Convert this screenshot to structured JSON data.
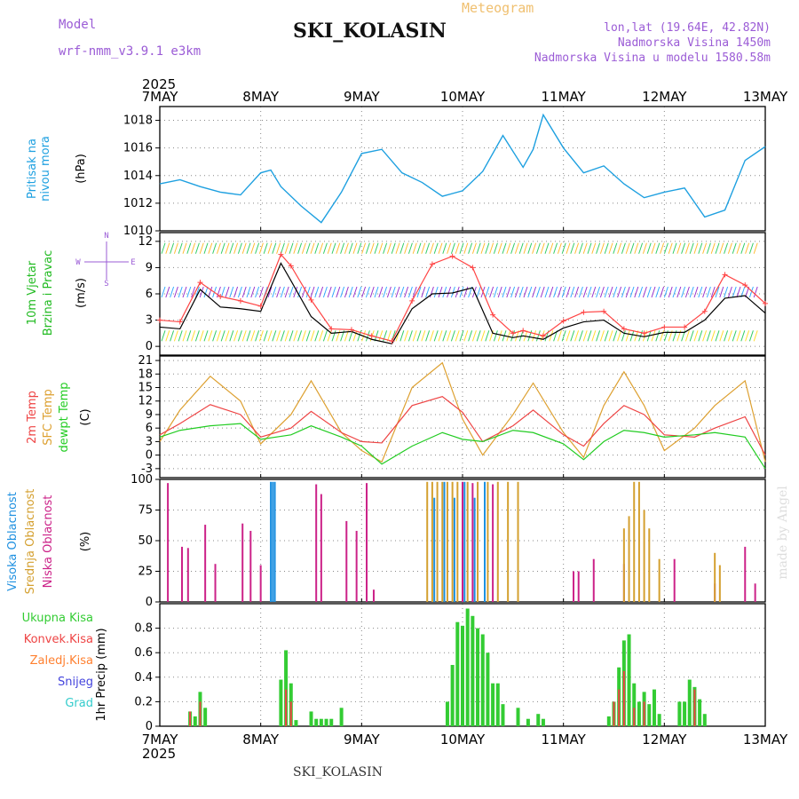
{
  "header": {
    "model_label": "Model",
    "model_name": "wrf-nmm_v3.9.1 e3km",
    "meteogram_label": "Meteogram",
    "station": "SKI_KOLASIN",
    "coords": "lon,lat (19.64E, 42.82N)",
    "altitude": "Nadmorska Visina 1450m",
    "model_altitude": "Nadmorska Visina u modelu 1580.58m"
  },
  "footer": {
    "station": "SKI_KOLASIN",
    "credit": "made by Angel"
  },
  "colors": {
    "pressure": "#1ea0e0",
    "wind_speed": "#000000",
    "wind_gust": "#ff4444",
    "temp2m": "#ee4444",
    "sfc_temp": "#dda030",
    "dewpt": "#22cc22",
    "cloud_high": "#1e90e0",
    "cloud_mid": "#d4a030",
    "cloud_low": "#cc2288",
    "precip_total": "#33cc33",
    "precip_conv": "#ee4444",
    "precip_frozen": "#ff8030",
    "snow": "#4444dd",
    "hail": "#33cccc"
  },
  "chart_data": [
    {
      "type": "line",
      "title": "Pritisak na nivou mora",
      "ylabel": "(hPa)",
      "ylim": [
        1010,
        1019
      ],
      "yticks": [
        "1010",
        "1012",
        "1014",
        "1016",
        "1018"
      ],
      "x_days": [
        "7MAY",
        "8MAY",
        "9MAY",
        "10MAY",
        "11MAY",
        "12MAY",
        "13MAY"
      ],
      "year": "2025",
      "series": [
        {
          "name": "Pressure",
          "x": [
            0,
            0.2,
            0.4,
            0.6,
            0.8,
            1.0,
            1.1,
            1.2,
            1.4,
            1.6,
            1.8,
            2.0,
            2.2,
            2.4,
            2.6,
            2.8,
            3.0,
            3.2,
            3.4,
            3.6,
            3.7,
            3.8,
            4.0,
            4.2,
            4.4,
            4.6,
            4.8,
            5.0,
            5.2,
            5.4,
            5.6,
            5.8,
            6.0
          ],
          "values": [
            1013.4,
            1013.7,
            1013.2,
            1012.8,
            1012.6,
            1014.2,
            1014.4,
            1013.2,
            1011.8,
            1010.6,
            1012.8,
            1015.6,
            1015.9,
            1014.2,
            1013.5,
            1012.5,
            1012.9,
            1014.3,
            1016.9,
            1014.6,
            1015.9,
            1018.4,
            1016.0,
            1014.2,
            1014.7,
            1013.4,
            1012.4,
            1012.8,
            1013.1,
            1011.0,
            1011.5,
            1015.1,
            1016.1
          ]
        }
      ]
    },
    {
      "type": "line",
      "title": "10m Vjetar Brzina i Pravac",
      "ylabel": "(m/s)",
      "ylim": [
        -1,
        13
      ],
      "yticks": [
        "0",
        "3",
        "6",
        "9",
        "12"
      ],
      "compass": [
        "N",
        "S",
        "E",
        "W"
      ],
      "series": [
        {
          "name": "Wind speed",
          "x": [
            0,
            0.2,
            0.4,
            0.6,
            0.8,
            1.0,
            1.2,
            1.3,
            1.5,
            1.7,
            1.9,
            2.1,
            2.3,
            2.5,
            2.7,
            2.9,
            3.1,
            3.3,
            3.5,
            3.6,
            3.8,
            4.0,
            4.2,
            4.4,
            4.6,
            4.8,
            5.0,
            5.2,
            5.4,
            5.6,
            5.8,
            6.0
          ],
          "values": [
            2.2,
            2.0,
            6.5,
            4.5,
            4.3,
            4.0,
            9.5,
            7.5,
            3.4,
            1.5,
            1.7,
            0.8,
            0.3,
            4.3,
            6.0,
            6.1,
            6.7,
            1.5,
            1.0,
            1.2,
            0.8,
            2.1,
            2.8,
            3.0,
            1.5,
            1.1,
            1.6,
            1.6,
            3.0,
            5.5,
            5.8,
            3.8
          ]
        },
        {
          "name": "Wind gust",
          "x": [
            0,
            0.2,
            0.4,
            0.6,
            0.8,
            1.0,
            1.2,
            1.3,
            1.5,
            1.7,
            1.9,
            2.1,
            2.3,
            2.5,
            2.7,
            2.9,
            3.1,
            3.3,
            3.5,
            3.6,
            3.8,
            4.0,
            4.2,
            4.4,
            4.6,
            4.8,
            5.0,
            5.2,
            5.4,
            5.6,
            5.8,
            6.0
          ],
          "values": [
            3.0,
            2.8,
            7.3,
            5.7,
            5.2,
            4.6,
            10.5,
            9.2,
            5.3,
            2.0,
            1.9,
            1.2,
            0.6,
            5.2,
            9.4,
            10.3,
            9.0,
            3.6,
            1.5,
            1.8,
            1.2,
            2.9,
            3.9,
            4.0,
            2.0,
            1.5,
            2.2,
            2.2,
            4.0,
            8.2,
            7.0,
            4.9
          ]
        }
      ]
    },
    {
      "type": "line",
      "title": "2m Temp / SFC Temp / dewpt Temp",
      "ylabel": "(C)",
      "ylim": [
        -5,
        22
      ],
      "yticks": [
        "-3",
        "0",
        "3",
        "6",
        "9",
        "12",
        "15",
        "18",
        "21"
      ],
      "series": [
        {
          "name": "2m Temp",
          "x": [
            0,
            0.2,
            0.5,
            0.8,
            1.0,
            1.3,
            1.5,
            1.8,
            2.0,
            2.2,
            2.5,
            2.8,
            3.0,
            3.2,
            3.5,
            3.7,
            4.0,
            4.2,
            4.4,
            4.6,
            4.8,
            5.0,
            5.3,
            5.5,
            5.8,
            6.0
          ],
          "values": [
            4.5,
            7.0,
            11.2,
            9.0,
            4.0,
            6.0,
            9.7,
            5.0,
            3.0,
            2.7,
            11.0,
            13.0,
            9.5,
            3.0,
            6.5,
            10.0,
            4.5,
            2.0,
            7.0,
            11.0,
            9.0,
            4.5,
            4.0,
            6.0,
            8.5,
            0.0
          ]
        },
        {
          "name": "SFC Temp",
          "x": [
            0,
            0.2,
            0.5,
            0.8,
            1.0,
            1.3,
            1.5,
            1.8,
            2.0,
            2.2,
            2.5,
            2.8,
            3.0,
            3.2,
            3.5,
            3.7,
            4.0,
            4.2,
            4.4,
            4.6,
            4.8,
            5.0,
            5.3,
            5.5,
            5.8,
            6.0
          ],
          "values": [
            3.0,
            10.0,
            17.5,
            12.0,
            2.5,
            9.0,
            16.5,
            5.0,
            1.0,
            -1.5,
            15.0,
            20.5,
            8.0,
            0.0,
            9.0,
            16.0,
            5.0,
            -0.5,
            11.0,
            18.5,
            11.0,
            1.0,
            6.0,
            11.0,
            16.5,
            -1.5
          ]
        },
        {
          "name": "dewpt Temp",
          "x": [
            0,
            0.2,
            0.5,
            0.8,
            1.0,
            1.3,
            1.5,
            1.8,
            2.0,
            2.2,
            2.5,
            2.8,
            3.0,
            3.2,
            3.5,
            3.7,
            4.0,
            4.2,
            4.4,
            4.6,
            4.8,
            5.0,
            5.3,
            5.5,
            5.8,
            6.0
          ],
          "values": [
            4.0,
            5.5,
            6.5,
            7.0,
            3.5,
            4.5,
            6.5,
            4.0,
            2.0,
            -2.0,
            2.0,
            5.0,
            3.5,
            3.0,
            5.5,
            5.0,
            2.5,
            -1.0,
            3.0,
            5.5,
            5.0,
            4.0,
            4.5,
            5.0,
            4.0,
            -3.0
          ]
        }
      ]
    },
    {
      "type": "bar",
      "title": "Visoka Oblacnost / Srednja Oblacnost / Niska Oblacnost",
      "ylabel": "(%)",
      "ylim": [
        0,
        100
      ],
      "yticks": [
        "0",
        "25",
        "50",
        "75",
        "100"
      ],
      "series": [
        {
          "name": "Niska",
          "x": [
            0.08,
            0.22,
            0.28,
            0.45,
            0.55,
            0.82,
            0.9,
            1.0,
            1.55,
            1.6,
            1.85,
            1.95,
            2.05,
            2.12,
            3.0,
            3.1,
            3.3,
            4.1,
            4.15,
            4.3,
            4.6,
            5.1,
            5.5,
            5.8,
            5.9
          ],
          "values": [
            97,
            45,
            44,
            63,
            31,
            64,
            58,
            30,
            96,
            88,
            66,
            58,
            97,
            10,
            98,
            97,
            96,
            25,
            25,
            35,
            31,
            35,
            15,
            45,
            15
          ]
        },
        {
          "name": "Srednja",
          "x": [
            2.65,
            2.7,
            2.75,
            2.8,
            2.85,
            2.9,
            2.95,
            3.05,
            3.15,
            3.25,
            3.35,
            3.45,
            3.55,
            4.6,
            4.65,
            4.7,
            4.75,
            4.8,
            4.85,
            4.95,
            5.5,
            5.55
          ],
          "values": [
            98,
            98,
            98,
            98,
            98,
            98,
            98,
            98,
            98,
            98,
            98,
            98,
            98,
            60,
            70,
            98,
            98,
            75,
            60,
            35,
            40,
            30
          ]
        },
        {
          "name": "Visoka",
          "x": [
            1.1,
            1.12,
            1.14,
            2.72,
            2.82,
            2.92,
            3.02,
            3.12,
            3.22
          ],
          "values": [
            98,
            98,
            98,
            85,
            98,
            85,
            98,
            85,
            98
          ]
        }
      ]
    },
    {
      "type": "bar",
      "title": "1hr Precip",
      "ylabel": "1hr Precip (mm)",
      "ylim": [
        0,
        1.0
      ],
      "yticks": [
        "0",
        "0.2",
        "0.4",
        "0.6",
        "0.8"
      ],
      "legend": [
        "Ukupna Kisa",
        "Konvek.Kisa",
        "Zaledj.Kisa",
        "Snijeg",
        "Grad"
      ],
      "series": [
        {
          "name": "Ukupna Kisa",
          "x": [
            0.3,
            0.35,
            0.4,
            0.45,
            1.2,
            1.25,
            1.3,
            1.35,
            1.5,
            1.55,
            1.6,
            1.65,
            1.7,
            1.8,
            2.85,
            2.9,
            2.95,
            3.0,
            3.05,
            3.1,
            3.15,
            3.2,
            3.25,
            3.3,
            3.35,
            3.4,
            3.55,
            3.65,
            3.75,
            3.8,
            4.45,
            4.5,
            4.55,
            4.6,
            4.65,
            4.7,
            4.75,
            4.8,
            4.85,
            4.9,
            4.95,
            5.15,
            5.2,
            5.25,
            5.3,
            5.35,
            5.4
          ],
          "values": [
            0.12,
            0.08,
            0.28,
            0.15,
            0.38,
            0.62,
            0.35,
            0.05,
            0.12,
            0.06,
            0.06,
            0.06,
            0.06,
            0.15,
            0.2,
            0.5,
            0.85,
            0.82,
            0.96,
            0.9,
            0.8,
            0.75,
            0.6,
            0.35,
            0.35,
            0.18,
            0.15,
            0.06,
            0.1,
            0.06,
            0.08,
            0.2,
            0.48,
            0.7,
            0.75,
            0.35,
            0.2,
            0.28,
            0.18,
            0.3,
            0.1,
            0.2,
            0.2,
            0.38,
            0.32,
            0.22,
            0.1
          ]
        },
        {
          "name": "Konvek.Kisa",
          "x": [
            0.3,
            0.4,
            1.25,
            1.3,
            4.5,
            4.55,
            4.6,
            4.7,
            4.8,
            5.3
          ],
          "values": [
            0.12,
            0.2,
            0.3,
            0.2,
            0.2,
            0.3,
            0.45,
            0.15,
            0.2,
            0.3
          ]
        }
      ]
    }
  ]
}
